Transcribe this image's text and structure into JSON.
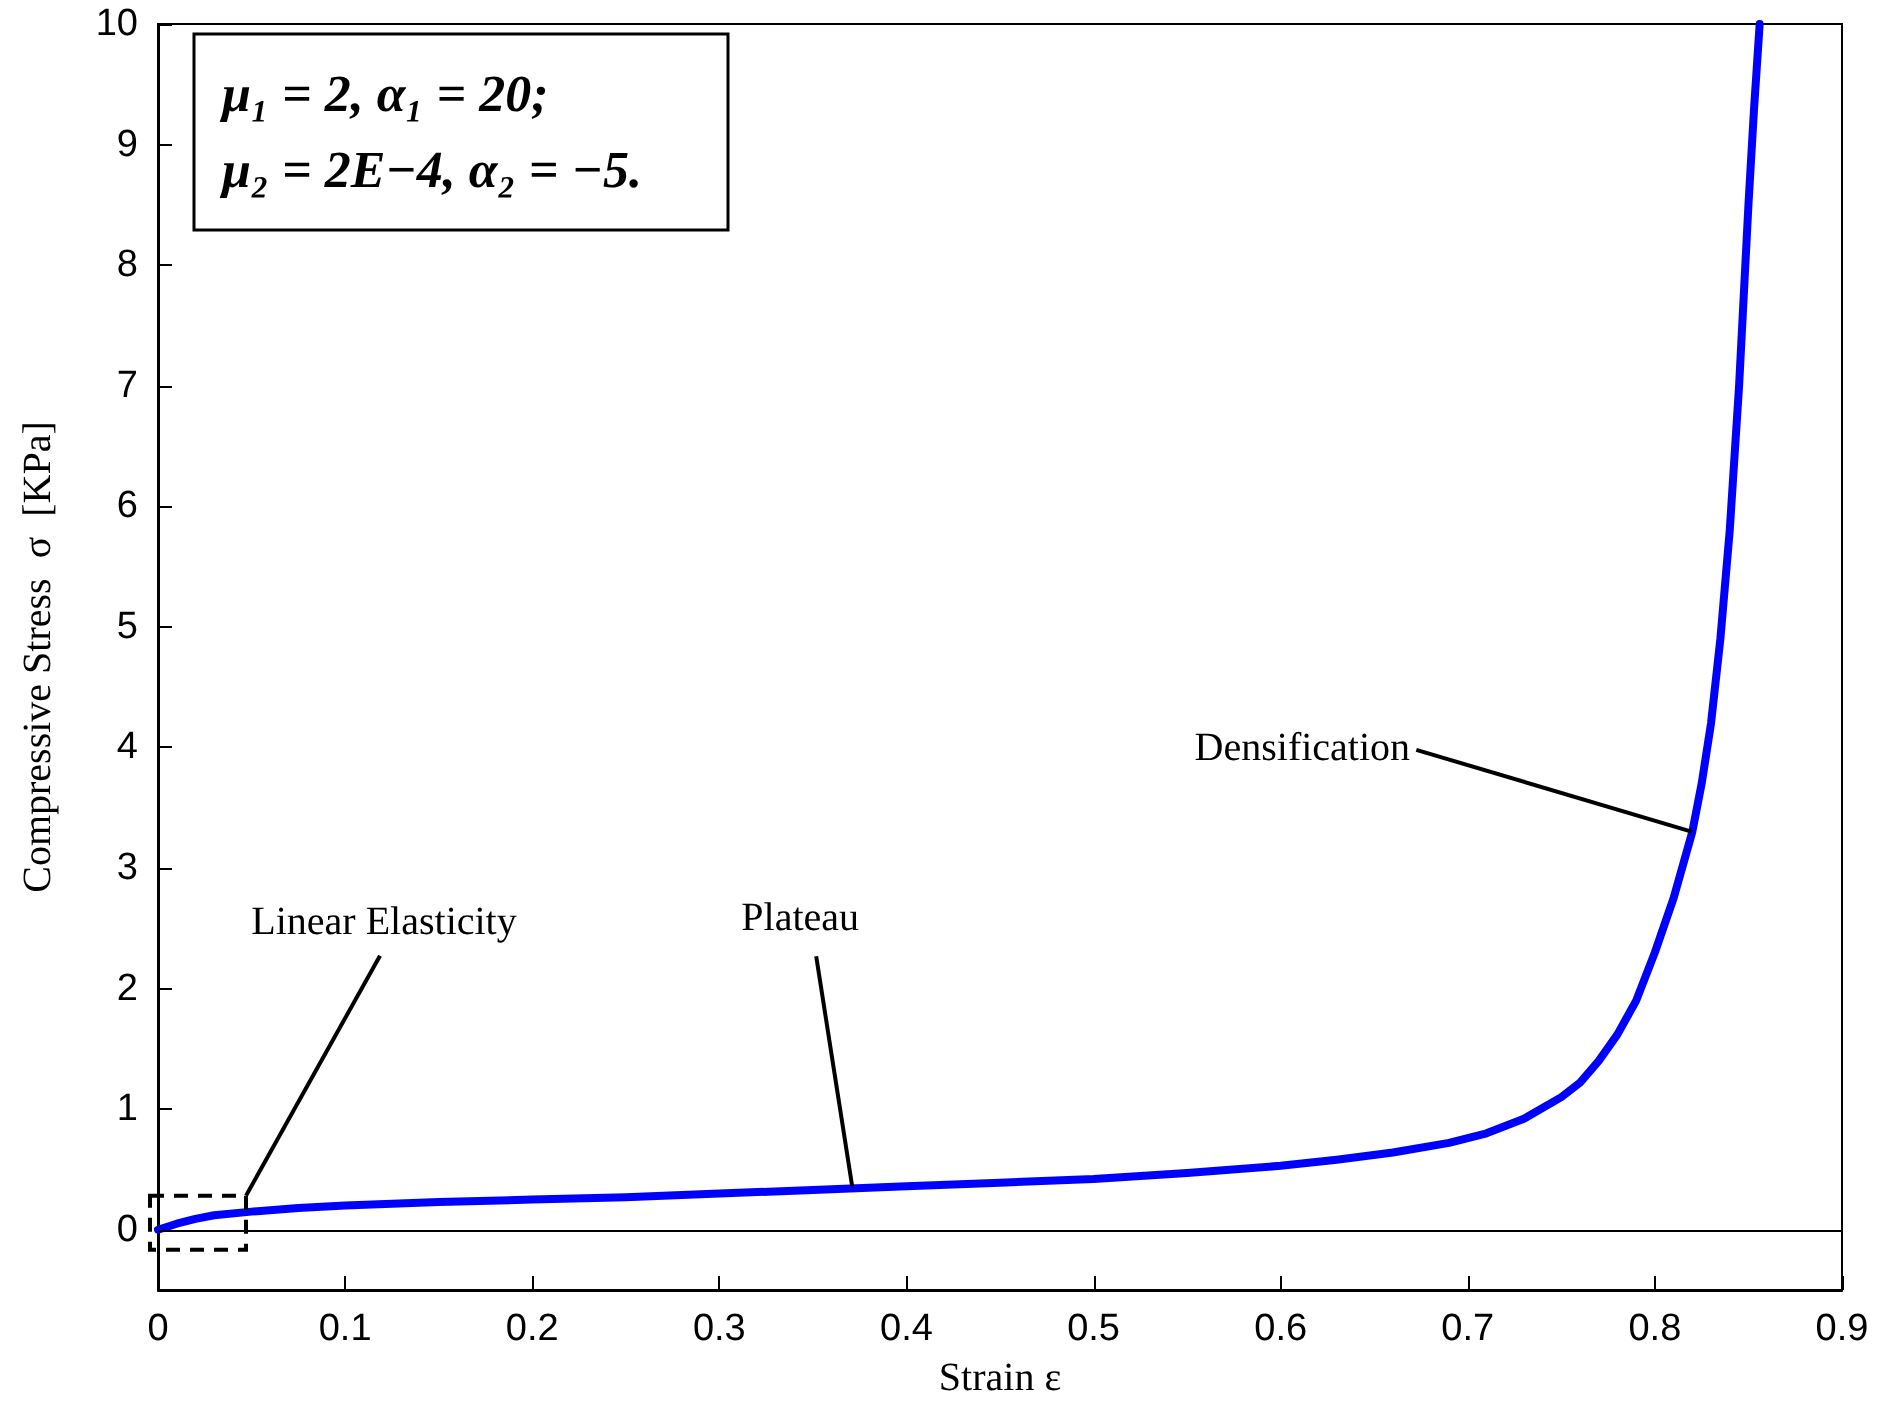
{
  "chart_data": {
    "type": "line",
    "xlabel": "Strain ε",
    "ylabel": "Compressive Stress  σ  [KPa]",
    "x": [
      0,
      0.01,
      0.02,
      0.03,
      0.05,
      0.075,
      0.1,
      0.15,
      0.2,
      0.25,
      0.3,
      0.35,
      0.4,
      0.45,
      0.5,
      0.55,
      0.6,
      0.63,
      0.66,
      0.69,
      0.71,
      0.73,
      0.75,
      0.76,
      0.77,
      0.78,
      0.79,
      0.8,
      0.81,
      0.82,
      0.825,
      0.83,
      0.835,
      0.84,
      0.845,
      0.85,
      0.853,
      0.856
    ],
    "series": [
      {
        "color": "#0000ff",
        "values": [
          0,
          0.05,
          0.09,
          0.12,
          0.15,
          0.18,
          0.2,
          0.23,
          0.25,
          0.27,
          0.3,
          0.33,
          0.36,
          0.39,
          0.42,
          0.47,
          0.53,
          0.58,
          0.64,
          0.72,
          0.8,
          0.92,
          1.1,
          1.22,
          1.4,
          1.62,
          1.9,
          2.3,
          2.75,
          3.3,
          3.7,
          4.2,
          4.9,
          5.8,
          7.0,
          8.5,
          9.3,
          10
        ]
      }
    ],
    "xlim": [
      0,
      0.9
    ],
    "xticks": [
      0,
      0.1,
      0.2,
      0.3,
      0.4,
      0.5,
      0.6,
      0.7,
      0.8,
      0.9
    ],
    "ylim": [
      -0.5,
      10
    ],
    "yticks": [
      0,
      1,
      2,
      3,
      4,
      5,
      6,
      7,
      8,
      9,
      10
    ],
    "ref_lines": [
      {
        "axis": "y",
        "value": 0,
        "color": "#000000",
        "line_style": "solid"
      }
    ],
    "annotations": [
      "Linear Elasticity",
      "μ₁ = 2, α₁ = 20;",
      "μ₂ = 2E−4, α₂ = −5.",
      {
        "text": "Plateau",
        "x": 0.371,
        "y": 0.36
      },
      {
        "text": "Densification",
        "x": 0.82,
        "y": 3.3
      }
    ],
    "grid": false,
    "marker": "none",
    "line_style": "solid"
  }
}
